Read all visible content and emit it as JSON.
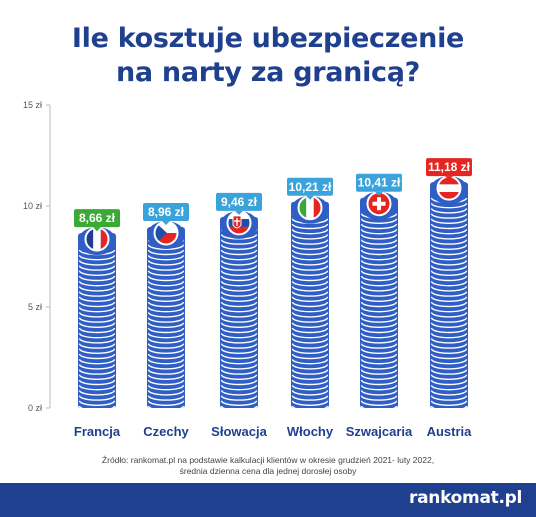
{
  "title": {
    "line1": "Ile kosztuje ubezpieczenie",
    "line2": "na narty za granicą?"
  },
  "chart_data": {
    "type": "bar",
    "categories": [
      "Francja",
      "Czechy",
      "Słowacja",
      "Włochy",
      "Szwajcaria",
      "Austria"
    ],
    "values": [
      8.66,
      8.96,
      9.46,
      10.21,
      10.41,
      11.18
    ],
    "value_labels": [
      "8,66 zł",
      "8,96 zł",
      "9,46 zł",
      "10,21 zł",
      "10,41 zł",
      "11,18 zł"
    ],
    "label_colors": [
      "#3aaa35",
      "#3aa3dc",
      "#3aa3dc",
      "#3aa3dc",
      "#3aa3dc",
      "#e52521"
    ],
    "flags": [
      "france-flag-icon",
      "czech-flag-icon",
      "slovakia-flag-icon",
      "italy-flag-icon",
      "switzerland-flag-icon",
      "austria-flag-icon"
    ],
    "y_ticks": [
      0,
      5,
      10,
      15
    ],
    "y_tick_labels": [
      "0 zł",
      "5 zł",
      "10 zł",
      "15 zł"
    ],
    "ylim": [
      0,
      15
    ],
    "grid": false,
    "bar_style": "stacked coins"
  },
  "source": {
    "line1": "Źródło: rankomat.pl na podstawie kalkulacji klientów w okresie grudzień 2021- luty 2022,",
    "line2": "średnia dzienna cena dla jednej dorosłej osoby"
  },
  "brand": "rankomat.pl",
  "colors": {
    "navy": "#1f3f8f",
    "coin_blue": "#2f5fc4",
    "green": "#3aaa35",
    "light_blue": "#3aa3dc",
    "red": "#e52521"
  }
}
